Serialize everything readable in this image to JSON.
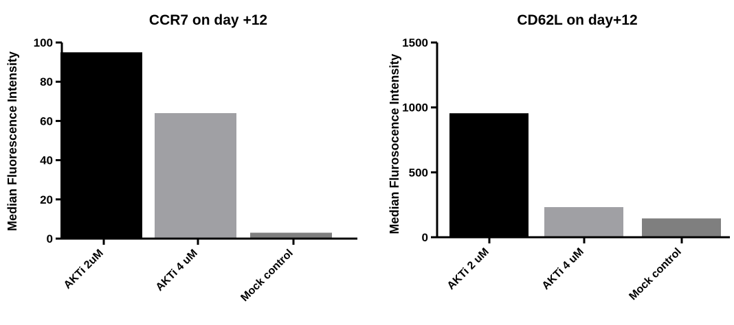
{
  "chart_data": [
    {
      "type": "bar",
      "title": "CCR7 on day +12",
      "ylabel": "Median Fluorescence Intensity",
      "xlabel": "",
      "categories": [
        "AKTi 2uM",
        "AKTi 4 uM",
        "Mock control"
      ],
      "values": [
        95,
        64,
        3
      ],
      "colors": [
        "#000000",
        "#a0a0a4",
        "#7f7f7f"
      ],
      "ylim": [
        0,
        100
      ],
      "yticks": [
        0,
        20,
        40,
        60,
        80,
        100
      ],
      "grid": false,
      "legend": "none"
    },
    {
      "type": "bar",
      "title": "CD62L on day+12",
      "ylabel": "Median Flurosocence  Intensity",
      "xlabel": "",
      "categories": [
        "AKTi 2 uM",
        "AKTi 4 uM",
        "Mock control"
      ],
      "values": [
        955,
        232,
        145
      ],
      "colors": [
        "#000000",
        "#a0a0a4",
        "#7f7f7f"
      ],
      "ylim": [
        0,
        1500
      ],
      "yticks": [
        0,
        500,
        1000,
        1500
      ],
      "grid": false,
      "legend": "none"
    }
  ]
}
